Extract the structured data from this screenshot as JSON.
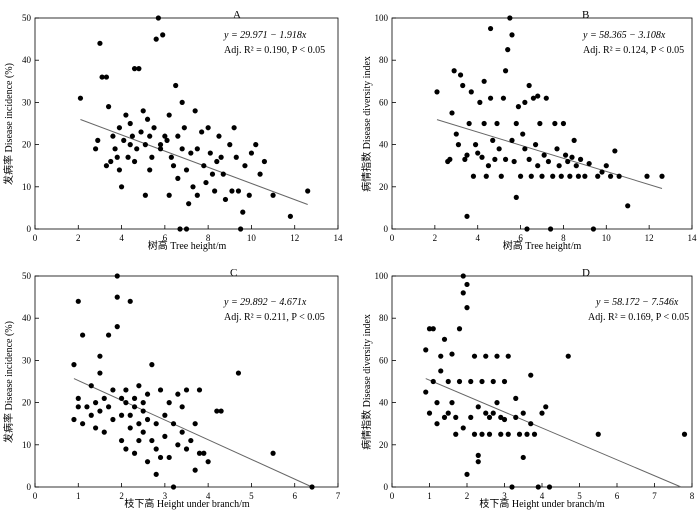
{
  "chart_data": [
    {
      "type": "scatter",
      "letter": "A",
      "xlabel": "树高  Tree height/m",
      "ylabel": "发病率  Disease incidence (%)",
      "xlim": [
        0,
        14
      ],
      "ylim": [
        0,
        50
      ],
      "xticks": [
        "0",
        "2",
        "4",
        "6",
        "8",
        "10",
        "12",
        "14"
      ],
      "yticks": [
        "0",
        "10",
        "20",
        "30",
        "40",
        "50"
      ],
      "equation": "y = 29.971 − 1.918x",
      "stats": "Adj. R² = 0.190,  P < 0.05",
      "fit": {
        "intercept": 29.971,
        "slope": -1.918,
        "x_range": [
          2.1,
          12.6
        ]
      },
      "points": [
        [
          2.1,
          31
        ],
        [
          2.8,
          19
        ],
        [
          2.9,
          21
        ],
        [
          3.0,
          44
        ],
        [
          3.1,
          36
        ],
        [
          3.3,
          36
        ],
        [
          3.3,
          15
        ],
        [
          3.4,
          29
        ],
        [
          3.5,
          16
        ],
        [
          3.6,
          22
        ],
        [
          3.7,
          19
        ],
        [
          3.8,
          17
        ],
        [
          3.9,
          24
        ],
        [
          3.9,
          14
        ],
        [
          4.0,
          10
        ],
        [
          4.1,
          21
        ],
        [
          4.2,
          27
        ],
        [
          4.3,
          17
        ],
        [
          4.4,
          20
        ],
        [
          4.4,
          25
        ],
        [
          4.5,
          22
        ],
        [
          4.6,
          16
        ],
        [
          4.6,
          38
        ],
        [
          4.7,
          19
        ],
        [
          4.8,
          38
        ],
        [
          4.9,
          23
        ],
        [
          5.0,
          28
        ],
        [
          5.1,
          20
        ],
        [
          5.1,
          8
        ],
        [
          5.2,
          26
        ],
        [
          5.3,
          22
        ],
        [
          5.3,
          14
        ],
        [
          5.4,
          17
        ],
        [
          5.5,
          24
        ],
        [
          5.6,
          45
        ],
        [
          5.7,
          50
        ],
        [
          5.8,
          19
        ],
        [
          5.8,
          20
        ],
        [
          5.9,
          46
        ],
        [
          6.0,
          22
        ],
        [
          6.1,
          21
        ],
        [
          6.2,
          27
        ],
        [
          6.2,
          8
        ],
        [
          6.3,
          17
        ],
        [
          6.4,
          15
        ],
        [
          6.5,
          34
        ],
        [
          6.6,
          22
        ],
        [
          6.6,
          12
        ],
        [
          6.7,
          0
        ],
        [
          6.8,
          19
        ],
        [
          6.8,
          30
        ],
        [
          6.9,
          24
        ],
        [
          7.0,
          0
        ],
        [
          7.0,
          14
        ],
        [
          7.1,
          6
        ],
        [
          7.2,
          18
        ],
        [
          7.3,
          10
        ],
        [
          7.4,
          28
        ],
        [
          7.5,
          19
        ],
        [
          7.5,
          8
        ],
        [
          7.7,
          23
        ],
        [
          7.8,
          15
        ],
        [
          7.9,
          11
        ],
        [
          8.0,
          24
        ],
        [
          8.1,
          18
        ],
        [
          8.2,
          13
        ],
        [
          8.3,
          9
        ],
        [
          8.4,
          16
        ],
        [
          8.5,
          22
        ],
        [
          8.6,
          17
        ],
        [
          8.7,
          13
        ],
        [
          8.8,
          7
        ],
        [
          9.0,
          20
        ],
        [
          9.1,
          9
        ],
        [
          9.2,
          24
        ],
        [
          9.3,
          17
        ],
        [
          9.4,
          9
        ],
        [
          9.5,
          0
        ],
        [
          9.6,
          4
        ],
        [
          9.7,
          15
        ],
        [
          9.9,
          8
        ],
        [
          10.0,
          18
        ],
        [
          10.2,
          20
        ],
        [
          10.4,
          13
        ],
        [
          10.6,
          16
        ],
        [
          11.0,
          8
        ],
        [
          11.8,
          3
        ],
        [
          12.6,
          9
        ]
      ]
    },
    {
      "type": "scatter",
      "letter": "B",
      "xlabel": "树高  Tree height/m",
      "ylabel": "病情指数  Disease diversity index",
      "xlim": [
        0,
        14
      ],
      "ylim": [
        0,
        100
      ],
      "xticks": [
        "0",
        "2",
        "4",
        "6",
        "8",
        "10",
        "12",
        "14"
      ],
      "yticks": [
        "0",
        "20",
        "40",
        "60",
        "80",
        "100"
      ],
      "equation": "y = 58.365 − 3.108x",
      "stats": "Adj. R² = 0.124,  P < 0.05",
      "fit": {
        "intercept": 58.365,
        "slope": -3.108,
        "x_range": [
          2.1,
          12.6
        ]
      },
      "points": [
        [
          2.1,
          65
        ],
        [
          2.6,
          32
        ],
        [
          2.7,
          33
        ],
        [
          2.8,
          55
        ],
        [
          2.9,
          75
        ],
        [
          3.0,
          45
        ],
        [
          3.1,
          40
        ],
        [
          3.2,
          73
        ],
        [
          3.3,
          68
        ],
        [
          3.4,
          33
        ],
        [
          3.5,
          6
        ],
        [
          3.5,
          35
        ],
        [
          3.6,
          50
        ],
        [
          3.7,
          65
        ],
        [
          3.8,
          25
        ],
        [
          3.9,
          40
        ],
        [
          4.0,
          36
        ],
        [
          4.1,
          60
        ],
        [
          4.2,
          34
        ],
        [
          4.3,
          50
        ],
        [
          4.3,
          70
        ],
        [
          4.4,
          25
        ],
        [
          4.5,
          30
        ],
        [
          4.6,
          62
        ],
        [
          4.6,
          95
        ],
        [
          4.7,
          42
        ],
        [
          4.8,
          33
        ],
        [
          4.9,
          50
        ],
        [
          5.0,
          38
        ],
        [
          5.1,
          25
        ],
        [
          5.2,
          62
        ],
        [
          5.3,
          33
        ],
        [
          5.3,
          75
        ],
        [
          5.4,
          85
        ],
        [
          5.5,
          100
        ],
        [
          5.6,
          42
        ],
        [
          5.6,
          92
        ],
        [
          5.7,
          32
        ],
        [
          5.8,
          15
        ],
        [
          5.8,
          50
        ],
        [
          5.9,
          58
        ],
        [
          6.0,
          25
        ],
        [
          6.1,
          45
        ],
        [
          6.2,
          60
        ],
        [
          6.2,
          38
        ],
        [
          6.3,
          0
        ],
        [
          6.4,
          68
        ],
        [
          6.4,
          33
        ],
        [
          6.5,
          25
        ],
        [
          6.6,
          62
        ],
        [
          6.7,
          40
        ],
        [
          6.8,
          30
        ],
        [
          6.8,
          63
        ],
        [
          6.9,
          50
        ],
        [
          7.0,
          25
        ],
        [
          7.1,
          35
        ],
        [
          7.2,
          62
        ],
        [
          7.3,
          32
        ],
        [
          7.4,
          0
        ],
        [
          7.5,
          25
        ],
        [
          7.6,
          50
        ],
        [
          7.7,
          38
        ],
        [
          7.8,
          30
        ],
        [
          7.9,
          25
        ],
        [
          8.0,
          50
        ],
        [
          8.1,
          35
        ],
        [
          8.2,
          32
        ],
        [
          8.3,
          25
        ],
        [
          8.4,
          34
        ],
        [
          8.5,
          42
        ],
        [
          8.6,
          30
        ],
        [
          8.7,
          25
        ],
        [
          8.8,
          33
        ],
        [
          9.0,
          25
        ],
        [
          9.2,
          31
        ],
        [
          9.4,
          0
        ],
        [
          9.6,
          25
        ],
        [
          9.8,
          27
        ],
        [
          10.0,
          30
        ],
        [
          10.2,
          25
        ],
        [
          10.4,
          37
        ],
        [
          10.6,
          25
        ],
        [
          11.0,
          11
        ],
        [
          11.9,
          25
        ],
        [
          12.6,
          25
        ]
      ]
    },
    {
      "type": "scatter",
      "letter": "C",
      "xlabel": "枝下高  Height under branch/m",
      "ylabel": "发病率  Disease incidence (%)",
      "xlim": [
        0,
        7
      ],
      "ylim": [
        0,
        50
      ],
      "xticks": [
        "0",
        "1",
        "2",
        "3",
        "4",
        "5",
        "6",
        "7"
      ],
      "yticks": [
        "0",
        "10",
        "20",
        "30",
        "40",
        "50"
      ],
      "equation": "y = 29.892 − 4.671x",
      "stats": "Adj. R² = 0.211,  P < 0.05",
      "fit": {
        "intercept": 29.892,
        "slope": -4.671,
        "x_range": [
          0.9,
          6.4
        ]
      },
      "points": [
        [
          0.9,
          16
        ],
        [
          0.9,
          29
        ],
        [
          1.0,
          44
        ],
        [
          1.0,
          19
        ],
        [
          1.0,
          21
        ],
        [
          1.1,
          36
        ],
        [
          1.1,
          15
        ],
        [
          1.2,
          19
        ],
        [
          1.3,
          24
        ],
        [
          1.3,
          17
        ],
        [
          1.4,
          14
        ],
        [
          1.4,
          20
        ],
        [
          1.5,
          27
        ],
        [
          1.5,
          31
        ],
        [
          1.5,
          18
        ],
        [
          1.6,
          21
        ],
        [
          1.6,
          13
        ],
        [
          1.7,
          36
        ],
        [
          1.7,
          19
        ],
        [
          1.8,
          23
        ],
        [
          1.8,
          16
        ],
        [
          1.9,
          45
        ],
        [
          1.9,
          38
        ],
        [
          1.9,
          50
        ],
        [
          2.0,
          21
        ],
        [
          2.0,
          17
        ],
        [
          2.0,
          11
        ],
        [
          2.1,
          23
        ],
        [
          2.1,
          9
        ],
        [
          2.1,
          20
        ],
        [
          2.2,
          17
        ],
        [
          2.2,
          44
        ],
        [
          2.2,
          14
        ],
        [
          2.3,
          19
        ],
        [
          2.3,
          21
        ],
        [
          2.3,
          8
        ],
        [
          2.4,
          24
        ],
        [
          2.4,
          15
        ],
        [
          2.4,
          11
        ],
        [
          2.5,
          20
        ],
        [
          2.5,
          13
        ],
        [
          2.5,
          18
        ],
        [
          2.6,
          6
        ],
        [
          2.6,
          22
        ],
        [
          2.6,
          16
        ],
        [
          2.7,
          29
        ],
        [
          2.7,
          11
        ],
        [
          2.8,
          9
        ],
        [
          2.8,
          15
        ],
        [
          2.8,
          3
        ],
        [
          2.9,
          23
        ],
        [
          2.9,
          7
        ],
        [
          3.0,
          17
        ],
        [
          3.0,
          12
        ],
        [
          3.1,
          20
        ],
        [
          3.1,
          7
        ],
        [
          3.2,
          0
        ],
        [
          3.2,
          15
        ],
        [
          3.3,
          22
        ],
        [
          3.3,
          10
        ],
        [
          3.4,
          13
        ],
        [
          3.4,
          19
        ],
        [
          3.5,
          9
        ],
        [
          3.5,
          23
        ],
        [
          3.6,
          11
        ],
        [
          3.7,
          15
        ],
        [
          3.7,
          4
        ],
        [
          3.8,
          8
        ],
        [
          3.8,
          23
        ],
        [
          3.9,
          8
        ],
        [
          4.0,
          6
        ],
        [
          4.2,
          18
        ],
        [
          4.3,
          18
        ],
        [
          4.7,
          27
        ],
        [
          5.5,
          8
        ],
        [
          6.4,
          0
        ]
      ]
    },
    {
      "type": "scatter",
      "letter": "D",
      "xlabel": "枝下高  Height under branch/m",
      "ylabel": "病情指数  Disease diversity index",
      "xlim": [
        0,
        8
      ],
      "ylim": [
        0,
        100
      ],
      "xticks": [
        "0",
        "1",
        "2",
        "3",
        "4",
        "5",
        "6",
        "7",
        "8"
      ],
      "yticks": [
        "0",
        "20",
        "40",
        "60",
        "80",
        "100"
      ],
      "equation": "y = 58.172 − 7.546x",
      "stats": "Adj. R² = 0.169,  P < 0.05",
      "fit": {
        "intercept": 58.172,
        "slope": -7.546,
        "x_range": [
          0.9,
          7.7
        ]
      },
      "points": [
        [
          0.9,
          65
        ],
        [
          0.9,
          45
        ],
        [
          1.0,
          75
        ],
        [
          1.0,
          35
        ],
        [
          1.1,
          50
        ],
        [
          1.1,
          75
        ],
        [
          1.2,
          40
        ],
        [
          1.2,
          30
        ],
        [
          1.3,
          62
        ],
        [
          1.3,
          55
        ],
        [
          1.4,
          33
        ],
        [
          1.4,
          70
        ],
        [
          1.5,
          50
        ],
        [
          1.5,
          35
        ],
        [
          1.6,
          40
        ],
        [
          1.6,
          63
        ],
        [
          1.7,
          25
        ],
        [
          1.7,
          33
        ],
        [
          1.8,
          50
        ],
        [
          1.8,
          75
        ],
        [
          1.9,
          28
        ],
        [
          1.9,
          100
        ],
        [
          1.9,
          92
        ],
        [
          2.0,
          96
        ],
        [
          2.0,
          6
        ],
        [
          2.0,
          85
        ],
        [
          2.1,
          50
        ],
        [
          2.1,
          33
        ],
        [
          2.2,
          25
        ],
        [
          2.2,
          62
        ],
        [
          2.3,
          12
        ],
        [
          2.3,
          15
        ],
        [
          2.3,
          38
        ],
        [
          2.4,
          50
        ],
        [
          2.4,
          25
        ],
        [
          2.5,
          35
        ],
        [
          2.5,
          62
        ],
        [
          2.6,
          33
        ],
        [
          2.6,
          25
        ],
        [
          2.7,
          50
        ],
        [
          2.7,
          35
        ],
        [
          2.8,
          62
        ],
        [
          2.8,
          40
        ],
        [
          2.9,
          25
        ],
        [
          2.9,
          33
        ],
        [
          3.0,
          50
        ],
        [
          3.0,
          32
        ],
        [
          3.1,
          62
        ],
        [
          3.1,
          25
        ],
        [
          3.2,
          0
        ],
        [
          3.3,
          42
        ],
        [
          3.3,
          33
        ],
        [
          3.4,
          25
        ],
        [
          3.5,
          14
        ],
        [
          3.5,
          35
        ],
        [
          3.6,
          25
        ],
        [
          3.7,
          53
        ],
        [
          3.7,
          30
        ],
        [
          3.8,
          25
        ],
        [
          3.9,
          0
        ],
        [
          4.0,
          35
        ],
        [
          4.1,
          38
        ],
        [
          4.2,
          0
        ],
        [
          4.7,
          62
        ],
        [
          5.5,
          25
        ],
        [
          7.8,
          25
        ]
      ]
    }
  ]
}
